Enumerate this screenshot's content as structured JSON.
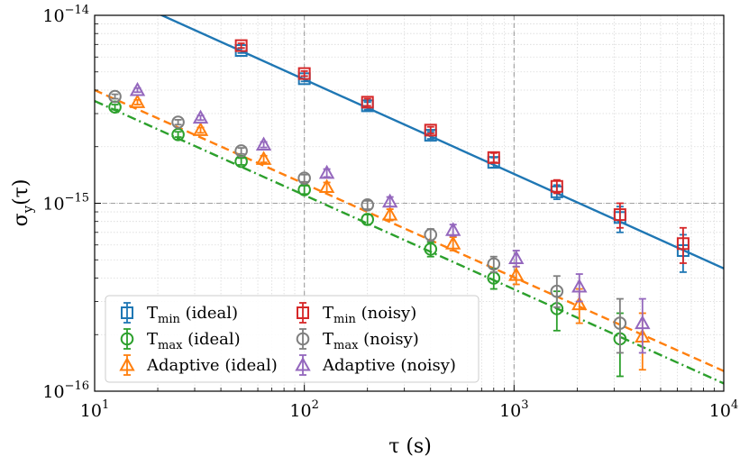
{
  "chart_data": {
    "type": "scatter",
    "xscale": "log",
    "yscale": "log",
    "xlim": [
      10,
      10000
    ],
    "ylim": [
      1e-16,
      1e-14
    ],
    "xlabel": "τ (s)",
    "ylabel": "σy(τ)",
    "grid": true,
    "legend_position": "lower-left",
    "colors": {
      "blue": "#1f77b4",
      "red": "#d62728",
      "green": "#2ca02c",
      "gray": "#7f7f7f",
      "orange": "#ff7f0e",
      "purple": "#9467bd"
    },
    "x_ticks": [
      {
        "value": 10,
        "base": "10",
        "exp": "1"
      },
      {
        "value": 100,
        "base": "10",
        "exp": "2"
      },
      {
        "value": 1000,
        "base": "10",
        "exp": "3"
      },
      {
        "value": 10000,
        "base": "10",
        "exp": "4"
      }
    ],
    "y_ticks": [
      {
        "value": 1e-16,
        "base": "10",
        "exp": "−16"
      },
      {
        "value": 1e-15,
        "base": "10",
        "exp": "−15"
      },
      {
        "value": 1e-14,
        "base": "10",
        "exp": "−14"
      }
    ],
    "reference_lines": {
      "x": 1000,
      "y": 1e-15
    },
    "fit_lines": [
      {
        "color": "#1f77b4",
        "style": "solid",
        "x": [
          10,
          10000
        ],
        "y": [
          1.45e-14,
          4.5e-16
        ]
      },
      {
        "color": "#ff7f0e",
        "style": "dashed",
        "x": [
          10,
          10000
        ],
        "y": [
          4e-15,
          1.28e-16
        ]
      },
      {
        "color": "#2ca02c",
        "style": "dashdot",
        "x": [
          10,
          10000
        ],
        "y": [
          3.5e-15,
          1.1e-16
        ]
      }
    ],
    "series": [
      {
        "name": "T",
        "sub": "min",
        "suffix": " (ideal)",
        "marker": "square",
        "color": "#1f77b4",
        "x": [
          50,
          100,
          200,
          400,
          800,
          1600,
          3200,
          6400
        ],
        "y": [
          6.5e-15,
          4.6e-15,
          3.3e-15,
          2.3e-15,
          1.65e-15,
          1.15e-15,
          8.4e-16,
          5.6e-16
        ],
        "err_low": [
          6.3e-15,
          4.45e-15,
          3.15e-15,
          2.2e-15,
          1.55e-15,
          1.05e-15,
          7e-16,
          4.3e-16
        ],
        "err_high": [
          6.7e-15,
          4.75e-15,
          3.45e-15,
          2.4e-15,
          1.75e-15,
          1.25e-15,
          9.6e-16,
          6.8e-16
        ]
      },
      {
        "name": "T",
        "sub": "max",
        "suffix": " (ideal)",
        "marker": "circle",
        "color": "#2ca02c",
        "x": [
          12.5,
          25,
          50,
          100,
          200,
          400,
          800,
          1600,
          3200
        ],
        "y": [
          3.25e-15,
          2.32e-15,
          1.67e-15,
          1.18e-15,
          8.2e-16,
          5.7e-16,
          4e-16,
          2.75e-16,
          1.9e-16
        ],
        "err_low": [
          3.15e-15,
          2.25e-15,
          1.6e-15,
          1.12e-15,
          7.7e-16,
          5.2e-16,
          3.5e-16,
          2.1e-16,
          1.2e-16
        ],
        "err_high": [
          3.35e-15,
          2.4e-15,
          1.74e-15,
          1.24e-15,
          8.7e-16,
          6.2e-16,
          4.5e-16,
          3.4e-16,
          2.6e-16
        ]
      },
      {
        "name": "Adaptive",
        "sub": "",
        "suffix": " (ideal)",
        "marker": "triangle",
        "color": "#ff7f0e",
        "x": [
          16,
          32,
          64,
          128,
          256,
          512,
          1024,
          2048,
          4096
        ],
        "y": [
          3.45e-15,
          2.45e-15,
          1.72e-15,
          1.22e-15,
          8.7e-16,
          6.1e-16,
          4.15e-16,
          2.9e-16,
          1.95e-16
        ],
        "err_low": [
          3.35e-15,
          2.37e-15,
          1.65e-15,
          1.15e-15,
          8.1e-16,
          5.6e-16,
          3.7e-16,
          2.3e-16,
          1.3e-16
        ],
        "err_high": [
          3.55e-15,
          2.53e-15,
          1.79e-15,
          1.29e-15,
          9.3e-16,
          6.6e-16,
          4.6e-16,
          3.5e-16,
          2.6e-16
        ]
      },
      {
        "name": "T",
        "sub": "min",
        "suffix": " (noisy)",
        "marker": "square",
        "color": "#d62728",
        "x": [
          50,
          100,
          200,
          400,
          800,
          1600,
          3200,
          6400
        ],
        "y": [
          6.9e-15,
          4.9e-15,
          3.45e-15,
          2.45e-15,
          1.75e-15,
          1.23e-15,
          8.7e-16,
          6.1e-16
        ],
        "err_low": [
          6.7e-15,
          4.75e-15,
          3.3e-15,
          2.35e-15,
          1.65e-15,
          1.13e-15,
          7.4e-16,
          4.8e-16
        ],
        "err_high": [
          7.1e-15,
          5.05e-15,
          3.6e-15,
          2.55e-15,
          1.85e-15,
          1.33e-15,
          1e-15,
          7.4e-16
        ]
      },
      {
        "name": "T",
        "sub": "max",
        "suffix": " (noisy)",
        "marker": "circle",
        "color": "#7f7f7f",
        "x": [
          12.5,
          25,
          50,
          100,
          200,
          400,
          800,
          1600,
          3200
        ],
        "y": [
          3.7e-15,
          2.7e-15,
          1.9e-15,
          1.36e-15,
          9.8e-16,
          6.8e-16,
          4.75e-16,
          3.4e-16,
          2.3e-16
        ],
        "err_low": [
          3.6e-15,
          2.62e-15,
          1.83e-15,
          1.3e-15,
          9.3e-16,
          6.3e-16,
          4.3e-16,
          2.8e-16,
          1.6e-16
        ],
        "err_high": [
          3.8e-15,
          2.78e-15,
          1.97e-15,
          1.42e-15,
          1.03e-15,
          7.3e-16,
          5.2e-16,
          4.1e-16,
          3.1e-16
        ]
      },
      {
        "name": "Adaptive",
        "sub": "",
        "suffix": " (noisy)",
        "marker": "triangle",
        "color": "#9467bd",
        "x": [
          16,
          32,
          64,
          128,
          256,
          512,
          1024,
          2048,
          4096
        ],
        "y": [
          4e-15,
          2.85e-15,
          2.05e-15,
          1.45e-15,
          1.02e-15,
          7.2e-16,
          5.1e-16,
          3.6e-16,
          2.3e-16
        ],
        "err_low": [
          3.9e-15,
          2.77e-15,
          1.98e-15,
          1.38e-15,
          9.6e-16,
          6.7e-16,
          4.6e-16,
          3e-16,
          1.6e-16
        ],
        "err_high": [
          4.1e-15,
          2.93e-15,
          2.12e-15,
          1.52e-15,
          1.08e-15,
          7.7e-16,
          5.6e-16,
          4.2e-16,
          3.1e-16
        ]
      }
    ]
  }
}
